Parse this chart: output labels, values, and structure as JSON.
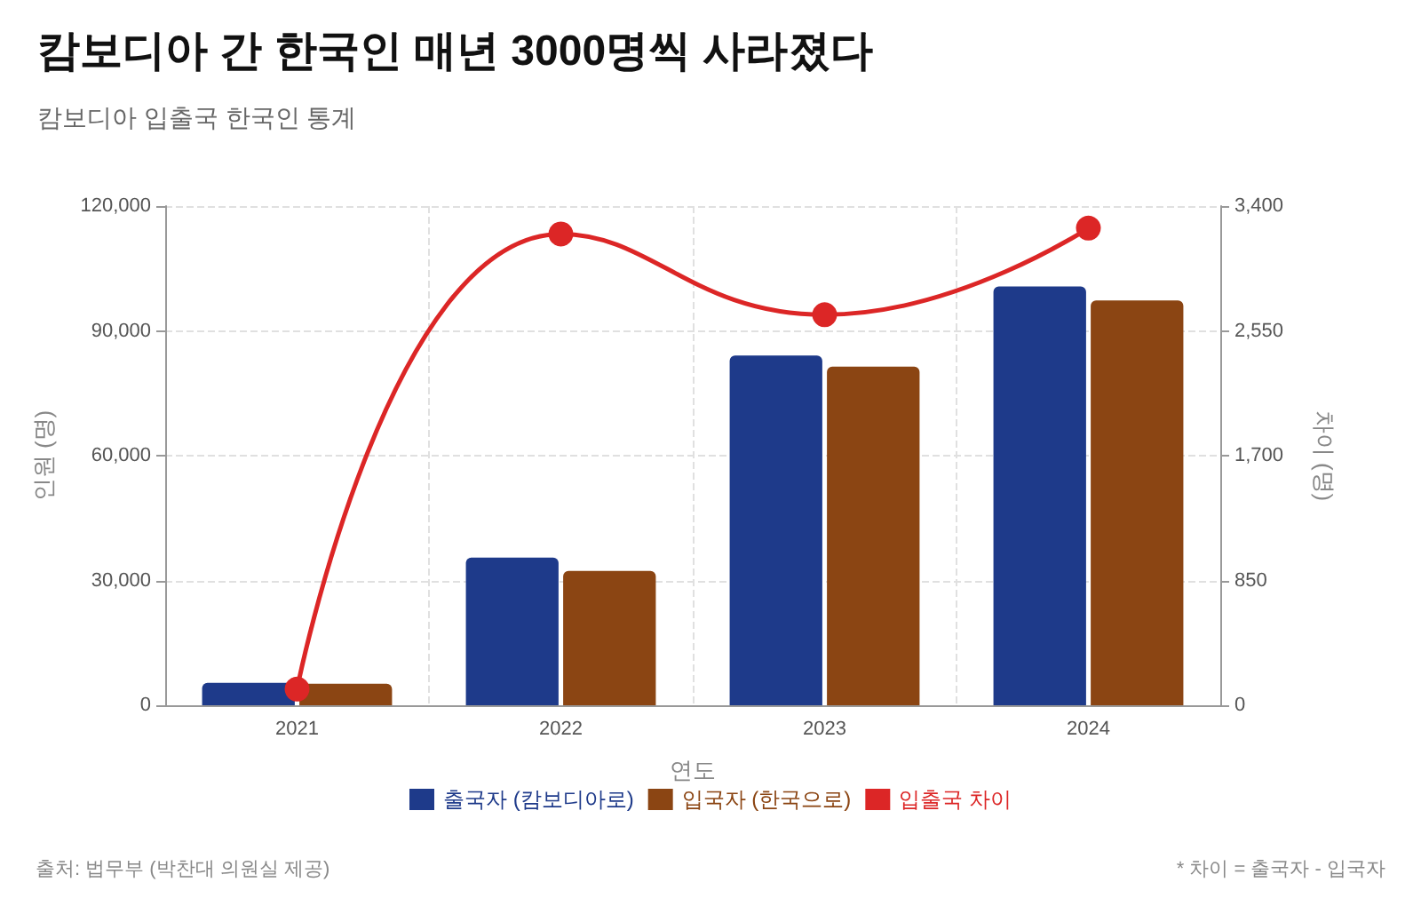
{
  "chart_data": {
    "type": "bar",
    "title": "캄보디아 간 한국인 매년 3000명씩 사라졌다",
    "subtitle": "캄보디아 입출국 한국인 통계",
    "xlabel": "연도",
    "ylabel": "인원 (명)",
    "y2label": "차이 (명)",
    "categories": [
      "2021",
      "2022",
      "2023",
      "2024"
    ],
    "series": [
      {
        "name": "출국자 (캄보디아로)",
        "color": "#1e3a8a",
        "values": [
          5400,
          35500,
          84100,
          100700
        ]
      },
      {
        "name": "입국자 (한국으로)",
        "color": "#8b4513",
        "values": [
          5200,
          32300,
          81400,
          97300
        ]
      },
      {
        "name": "입출국 차이",
        "type": "line",
        "axis": "y2",
        "color": "#dc2626",
        "values": [
          110,
          3210,
          2660,
          3250
        ]
      }
    ],
    "ylim": [
      0,
      120000
    ],
    "yticks": [
      {
        "value": 0,
        "label": "0"
      },
      {
        "value": 30000,
        "label": "30,000"
      },
      {
        "value": 60000,
        "label": "60,000"
      },
      {
        "value": 90000,
        "label": "90,000"
      },
      {
        "value": 120000,
        "label": "120,000"
      }
    ],
    "y2lim": [
      0,
      3400
    ],
    "y2ticks": [
      {
        "value": 0,
        "label": "0"
      },
      {
        "value": 850,
        "label": "850"
      },
      {
        "value": 1700,
        "label": "1,700"
      },
      {
        "value": 2550,
        "label": "2,550"
      },
      {
        "value": 3400,
        "label": "3,400"
      }
    ],
    "grid": true,
    "legend": "bottom",
    "marker": "circle",
    "line_style": "solid",
    "annotations": [
      "출처: 법무부 (박찬대 의원실 제공)",
      "* 차이 = 출국자 - 입국자"
    ]
  }
}
